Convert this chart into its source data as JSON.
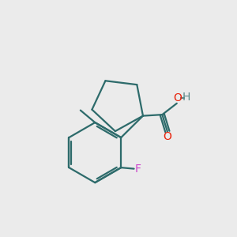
{
  "background_color": "#ebebeb",
  "bond_color": "#2d6b6b",
  "o_color": "#e8220a",
  "oh_o_color": "#e8220a",
  "oh_h_color": "#5a8888",
  "f_color": "#cc44cc",
  "line_width": 1.6,
  "fig_width": 3.0,
  "fig_height": 3.0,
  "dpi": 100,
  "xlim": [
    0,
    10
  ],
  "ylim": [
    0,
    10
  ]
}
